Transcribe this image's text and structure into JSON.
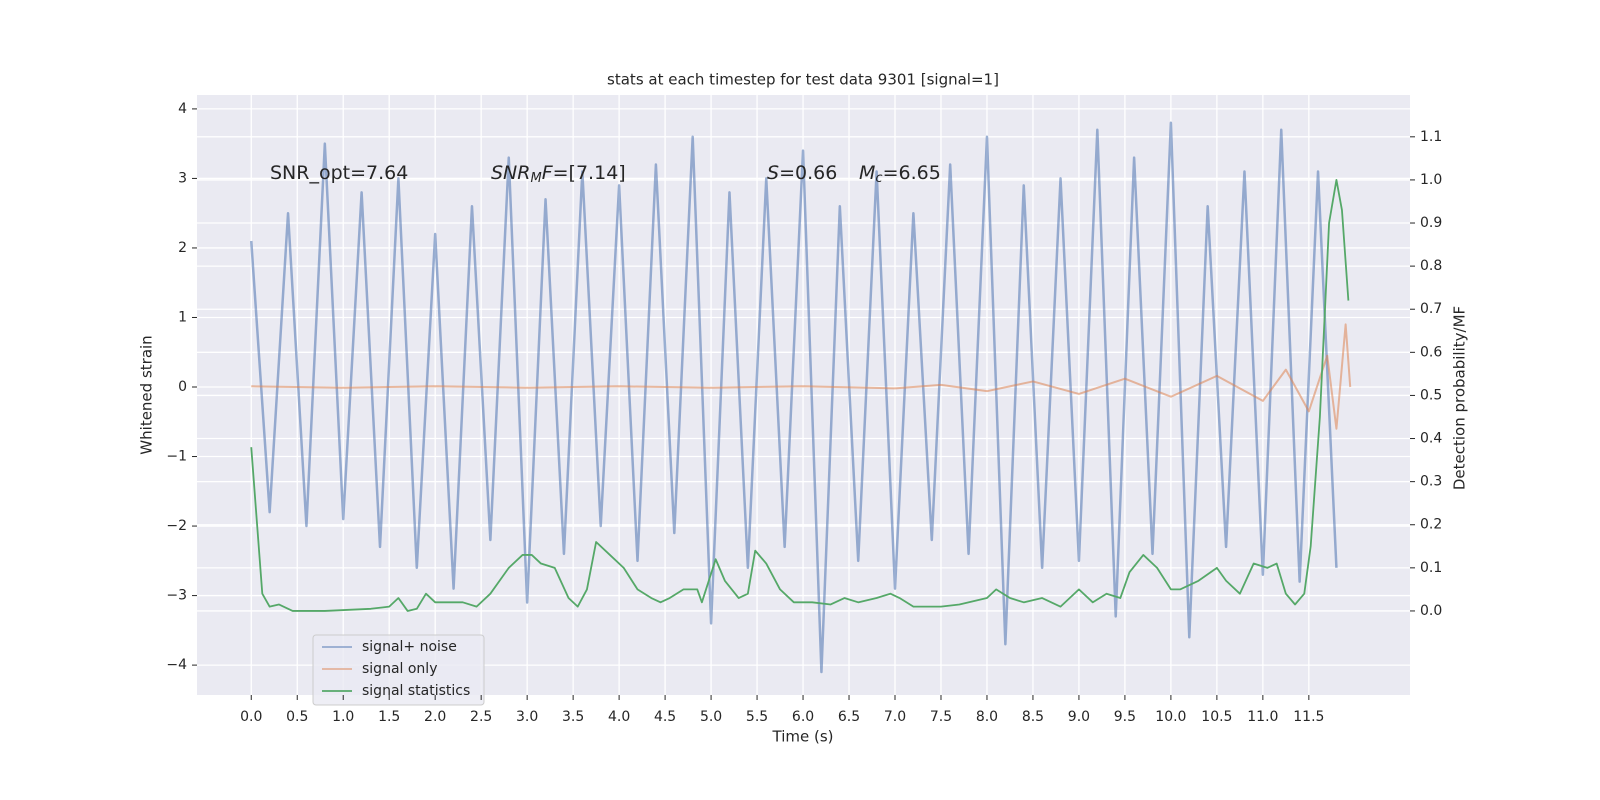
{
  "chart_data": {
    "type": "line",
    "title": "stats at each timestep for test data 9301 [signal=1]",
    "xlabel": "Time (s)",
    "ylabel": "Whitened strain",
    "y2label": "Detection probability/MF",
    "annotations": [
      [
        "SNR_opt=7.64"
      ],
      [
        "SNR",
        "M",
        "F",
        "=[7.14]"
      ],
      [
        "S",
        "=0.66"
      ],
      [
        "M",
        "c",
        "=6.65"
      ]
    ],
    "xlim": [
      -0.59,
      12.6
    ],
    "ylim": [
      -4.43,
      4.2
    ],
    "y2lim": [
      -0.195,
      1.197
    ],
    "xticks": [
      {
        "value": 0,
        "label": "0.0"
      },
      0.5,
      {
        "value": 1,
        "label": "1.0"
      },
      1.5,
      {
        "value": 2,
        "label": "2.0"
      },
      2.5,
      {
        "value": 3,
        "label": "3.0"
      },
      3.5,
      {
        "value": 4,
        "label": "4.0"
      },
      4.5,
      {
        "value": 5,
        "label": "5.0"
      },
      5.5,
      {
        "value": 6,
        "label": "6.0"
      },
      6.5,
      {
        "value": 7,
        "label": "7.0"
      },
      7.5,
      {
        "value": 8,
        "label": "8.0"
      },
      8.5,
      {
        "value": 9,
        "label": "9.0"
      },
      9.5,
      {
        "value": 10,
        "label": "10.0"
      },
      10.5,
      {
        "value": 11,
        "label": "11.0"
      },
      11.5
    ],
    "yticks": [
      {
        "value": -4,
        "label": "−4"
      },
      {
        "value": -3,
        "label": "−3"
      },
      {
        "value": -2,
        "label": "−2"
      },
      {
        "value": -1,
        "label": "−1"
      },
      0,
      1,
      2,
      3,
      4
    ],
    "y2ticks": [
      {
        "value": 0,
        "label": "0.0"
      },
      0.1,
      0.2,
      0.3,
      0.4,
      0.5,
      0.6,
      0.7,
      0.8,
      0.9,
      {
        "value": 1,
        "label": "1.0"
      },
      1.1
    ],
    "grid": true,
    "legend": "lower left",
    "series": [
      {
        "name": "signal+ noise",
        "color": "#4c72b0",
        "x": [
          0,
          0.2,
          0.4,
          0.6,
          0.8,
          1,
          1.2,
          1.4,
          1.6,
          1.8,
          2,
          2.2,
          2.4,
          2.6,
          2.8,
          3,
          3.2,
          3.4,
          3.6,
          3.8,
          4,
          4.2,
          4.4,
          4.6,
          4.8,
          5,
          5.2,
          5.4,
          5.6,
          5.8,
          6,
          6.2,
          6.4,
          6.6,
          6.8,
          7,
          7.2,
          7.4,
          7.6,
          7.8,
          8,
          8.2,
          8.4,
          8.6,
          8.8,
          9,
          9.2,
          9.4,
          9.6,
          9.8,
          10,
          10.2,
          10.4,
          10.6,
          10.8,
          11,
          11.2,
          11.4,
          11.6,
          11.8
        ],
        "values": [
          2.1,
          -1.8,
          2.5,
          -2.0,
          3.5,
          -1.9,
          2.8,
          -2.3,
          3.0,
          -2.6,
          2.2,
          -2.9,
          2.6,
          -2.2,
          3.3,
          -3.1,
          2.7,
          -2.4,
          3.1,
          -2.0,
          2.9,
          -2.5,
          3.2,
          -2.1,
          3.6,
          -3.4,
          2.8,
          -2.6,
          3.0,
          -2.3,
          3.4,
          -4.1,
          2.6,
          -2.5,
          3.1,
          -2.9,
          2.5,
          -2.2,
          3.2,
          -2.4,
          3.6,
          -3.7,
          2.9,
          -2.6,
          3.0,
          -2.5,
          3.7,
          -3.3,
          3.3,
          -2.4,
          3.8,
          -3.6,
          2.6,
          -2.3,
          3.1,
          -2.7,
          3.7,
          -2.8,
          3.1,
          -2.6
        ]
      },
      {
        "name": "signal only",
        "color": "#dd8452",
        "x": [
          0,
          1,
          2,
          3,
          4,
          5,
          6,
          7,
          7.5,
          8,
          8.5,
          9,
          9.5,
          10,
          10.5,
          11,
          11.25,
          11.5,
          11.7,
          11.8,
          11.9,
          11.95
        ],
        "values": [
          0.01,
          -0.01,
          0.01,
          -0.01,
          0.01,
          -0.01,
          0.01,
          -0.02,
          0.03,
          -0.06,
          0.08,
          -0.1,
          0.12,
          -0.14,
          0.16,
          -0.2,
          0.25,
          -0.35,
          0.45,
          -0.6,
          0.9,
          0
        ]
      },
      {
        "name": "signal statistics",
        "color": "#55a868",
        "axis": "y2",
        "x": [
          0,
          0.12,
          0.2,
          0.3,
          0.45,
          0.8,
          1.3,
          1.5,
          1.6,
          1.7,
          1.8,
          1.9,
          2.0,
          2.3,
          2.45,
          2.6,
          2.8,
          2.95,
          3.05,
          3.15,
          3.3,
          3.45,
          3.55,
          3.65,
          3.75,
          3.9,
          4.05,
          4.2,
          4.35,
          4.45,
          4.55,
          4.7,
          4.85,
          4.9,
          5.05,
          5.15,
          5.3,
          5.4,
          5.48,
          5.6,
          5.75,
          5.9,
          6.1,
          6.3,
          6.45,
          6.6,
          6.8,
          6.95,
          7.05,
          7.2,
          7.5,
          7.7,
          8.0,
          8.1,
          8.25,
          8.4,
          8.6,
          8.8,
          9.0,
          9.15,
          9.3,
          9.45,
          9.55,
          9.7,
          9.85,
          10.0,
          10.1,
          10.3,
          10.5,
          10.6,
          10.75,
          10.9,
          11.05,
          11.15,
          11.25,
          11.35,
          11.45,
          11.52,
          11.62,
          11.72,
          11.8,
          11.86,
          11.93
        ],
        "values": [
          0.38,
          0.04,
          0.01,
          0.015,
          0.0,
          0.0,
          0.005,
          0.01,
          0.03,
          0.0,
          0.005,
          0.04,
          0.02,
          0.02,
          0.01,
          0.04,
          0.1,
          0.13,
          0.13,
          0.11,
          0.1,
          0.03,
          0.01,
          0.05,
          0.16,
          0.13,
          0.1,
          0.05,
          0.03,
          0.02,
          0.03,
          0.05,
          0.05,
          0.02,
          0.12,
          0.07,
          0.03,
          0.04,
          0.14,
          0.11,
          0.05,
          0.02,
          0.02,
          0.015,
          0.03,
          0.02,
          0.03,
          0.04,
          0.03,
          0.01,
          0.01,
          0.015,
          0.03,
          0.05,
          0.03,
          0.02,
          0.03,
          0.01,
          0.05,
          0.02,
          0.04,
          0.03,
          0.09,
          0.13,
          0.1,
          0.05,
          0.05,
          0.07,
          0.1,
          0.07,
          0.04,
          0.11,
          0.1,
          0.11,
          0.04,
          0.015,
          0.04,
          0.15,
          0.45,
          0.9,
          1.0,
          0.93,
          0.72
        ]
      }
    ]
  }
}
